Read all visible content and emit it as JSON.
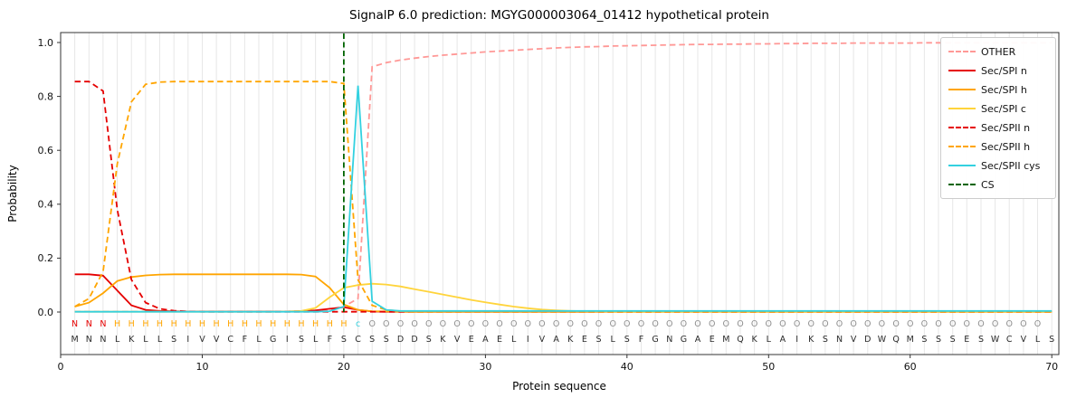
{
  "figure": {
    "title": "SignalP 6.0 prediction: MGYG000003064_01412 hypothetical protein",
    "xlabel": "Protein sequence",
    "ylabel": "Probability"
  },
  "chart_data": {
    "type": "line",
    "title": "SignalP 6.0 prediction: MGYG000003064_01412 hypothetical protein",
    "xlabel": "Protein sequence",
    "ylabel": "Probability",
    "xmax": 70.5,
    "xticks": [
      0,
      10,
      20,
      30,
      40,
      50,
      60,
      70
    ],
    "yticks": [
      0.0,
      0.2,
      0.4,
      0.6,
      0.8,
      1.0
    ],
    "grid": "light vertical gridline at every residue position",
    "legend_position": "upper right",
    "colors": {
      "grid": "#e7e7e7",
      "spine": "#333333",
      "tick_text": "#111111"
    },
    "sequence": "MNNLKLLSIVVCFLGISLFSCSSDDSKVEAELIVAKESLSFGNGAEMQKLAIKSNVDWQMSSSESWCVLS",
    "sequence_color": "#2b2b2b",
    "region_labels": "NNNHHHHHHHHHHHHHHHHHcOOOOOOOOOOOOOOOOOOOOOOOOOOOOOOOOOOOOOOOOOOOOOOOO",
    "region_colors": {
      "N": "#e50000",
      "H": "#ffa500",
      "c": "#33d1e0",
      "O": "#8f8f8f"
    },
    "cs": {
      "label": "CS",
      "position": 20,
      "color": "#006400"
    },
    "series": [
      {
        "name": "OTHER",
        "color": "#ff9896",
        "dash": true,
        "values": [
          0.002,
          0.002,
          0.002,
          0.002,
          0.002,
          0.002,
          0.002,
          0.002,
          0.002,
          0.002,
          0.002,
          0.002,
          0.002,
          0.002,
          0.002,
          0.002,
          0.002,
          0.003,
          0.005,
          0.02,
          0.05,
          0.91,
          0.925,
          0.935,
          0.942,
          0.948,
          0.953,
          0.957,
          0.961,
          0.965,
          0.968,
          0.971,
          0.974,
          0.977,
          0.98,
          0.982,
          0.984,
          0.985,
          0.987,
          0.988,
          0.989,
          0.99,
          0.991,
          0.992,
          0.993,
          0.993,
          0.994,
          0.994,
          0.995,
          0.995,
          0.996,
          0.996,
          0.997,
          0.997,
          0.997,
          0.998,
          0.998,
          0.998,
          0.998,
          0.998,
          0.999,
          0.999,
          0.999,
          0.999,
          0.999,
          0.999,
          0.999,
          0.999,
          0.999,
          0.999
        ]
      },
      {
        "name": "Sec/SPI n",
        "color": "#e50000",
        "dash": false,
        "values": [
          0.14,
          0.14,
          0.135,
          0.08,
          0.025,
          0.008,
          0.004,
          0.003,
          0.002,
          0.002,
          0.002,
          0.002,
          0.002,
          0.002,
          0.002,
          0.002,
          0.003,
          0.006,
          0.012,
          0.018,
          0.008,
          0.002,
          0.001,
          0.001,
          0.001,
          0.001,
          0.001,
          0.001,
          0.001,
          0.001,
          0.001,
          0.001,
          0.001,
          0.001,
          0.001,
          0.001,
          0.001,
          0.001,
          0.001,
          0.001,
          0.001,
          0.001,
          0.001,
          0.001,
          0.001,
          0.001,
          0.001,
          0.001,
          0.001,
          0.001,
          0.001,
          0.001,
          0.001,
          0.001,
          0.001,
          0.001,
          0.001,
          0.001,
          0.001,
          0.001,
          0.001,
          0.001,
          0.001,
          0.001,
          0.001,
          0.001,
          0.001,
          0.001,
          0.001,
          0.001
        ]
      },
      {
        "name": "Sec/SPI h",
        "color": "#ffa500",
        "dash": false,
        "values": [
          0.02,
          0.035,
          0.07,
          0.115,
          0.13,
          0.136,
          0.139,
          0.14,
          0.14,
          0.14,
          0.14,
          0.14,
          0.14,
          0.14,
          0.14,
          0.14,
          0.139,
          0.132,
          0.09,
          0.028,
          0.008,
          0.003,
          0.002,
          0.001,
          0.001,
          0.001,
          0.001,
          0.001,
          0.001,
          0.001,
          0.001,
          0.001,
          0.001,
          0.001,
          0.001,
          0.001,
          0.001,
          0.001,
          0.001,
          0.001,
          0.001,
          0.001,
          0.001,
          0.001,
          0.001,
          0.001,
          0.001,
          0.001,
          0.001,
          0.001,
          0.001,
          0.001,
          0.001,
          0.001,
          0.001,
          0.001,
          0.001,
          0.001,
          0.001,
          0.001,
          0.001,
          0.001,
          0.001,
          0.001,
          0.001,
          0.001,
          0.001,
          0.001,
          0.001,
          0.001
        ]
      },
      {
        "name": "Sec/SPI c",
        "color": "#ffd43b",
        "dash": false,
        "values": [
          0.001,
          0.001,
          0.001,
          0.001,
          0.001,
          0.001,
          0.001,
          0.001,
          0.001,
          0.001,
          0.001,
          0.001,
          0.001,
          0.001,
          0.001,
          0.002,
          0.004,
          0.015,
          0.055,
          0.09,
          0.1,
          0.105,
          0.102,
          0.095,
          0.085,
          0.075,
          0.065,
          0.055,
          0.045,
          0.036,
          0.028,
          0.02,
          0.014,
          0.009,
          0.006,
          0.004,
          0.003,
          0.002,
          0.001,
          0.001,
          0.001,
          0.001,
          0.001,
          0.001,
          0.001,
          0.001,
          0.001,
          0.001,
          0.001,
          0.001,
          0.001,
          0.001,
          0.001,
          0.001,
          0.001,
          0.001,
          0.001,
          0.001,
          0.001,
          0.001,
          0.001,
          0.001,
          0.001,
          0.001,
          0.001,
          0.001,
          0.001,
          0.001,
          0.001,
          0.001
        ]
      },
      {
        "name": "Sec/SPII n",
        "color": "#e50000",
        "dash": true,
        "values": [
          0.855,
          0.855,
          0.82,
          0.38,
          0.12,
          0.035,
          0.012,
          0.005,
          0.002,
          0.001,
          0.001,
          0.001,
          0.001,
          0.001,
          0.001,
          0.001,
          0.001,
          0.001,
          0.001,
          0.001,
          0.001,
          0.001,
          0.001,
          0.001,
          0.001,
          0.001,
          0.001,
          0.001,
          0.001,
          0.001,
          0.001,
          0.001,
          0.001,
          0.001,
          0.001,
          0.001,
          0.001,
          0.001,
          0.001,
          0.001,
          0.001,
          0.001,
          0.001,
          0.001,
          0.001,
          0.001,
          0.001,
          0.001,
          0.001,
          0.001,
          0.001,
          0.001,
          0.001,
          0.001,
          0.001,
          0.001,
          0.001,
          0.001,
          0.001,
          0.001,
          0.001,
          0.001,
          0.001,
          0.001,
          0.001,
          0.001,
          0.001,
          0.001,
          0.001,
          0.001
        ]
      },
      {
        "name": "Sec/SPII h",
        "color": "#ffa500",
        "dash": true,
        "values": [
          0.02,
          0.05,
          0.15,
          0.55,
          0.78,
          0.845,
          0.853,
          0.855,
          0.855,
          0.855,
          0.855,
          0.855,
          0.855,
          0.855,
          0.855,
          0.855,
          0.855,
          0.855,
          0.855,
          0.848,
          0.12,
          0.025,
          0.008,
          0.003,
          0.001,
          0.001,
          0.001,
          0.001,
          0.001,
          0.001,
          0.001,
          0.001,
          0.001,
          0.001,
          0.001,
          0.001,
          0.001,
          0.001,
          0.001,
          0.001,
          0.001,
          0.001,
          0.001,
          0.001,
          0.001,
          0.001,
          0.001,
          0.001,
          0.001,
          0.001,
          0.001,
          0.001,
          0.001,
          0.001,
          0.001,
          0.001,
          0.001,
          0.001,
          0.001,
          0.001,
          0.001,
          0.001,
          0.001,
          0.001,
          0.001,
          0.001,
          0.001,
          0.001,
          0.001,
          0.001
        ]
      },
      {
        "name": "Sec/SPII cys",
        "color": "#33d1e0",
        "dash": false,
        "values": [
          0.001,
          0.001,
          0.001,
          0.001,
          0.001,
          0.001,
          0.001,
          0.001,
          0.001,
          0.001,
          0.001,
          0.001,
          0.001,
          0.001,
          0.001,
          0.001,
          0.001,
          0.001,
          0.003,
          0.02,
          0.84,
          0.04,
          0.008,
          0.004,
          0.004,
          0.004,
          0.004,
          0.004,
          0.004,
          0.004,
          0.004,
          0.004,
          0.004,
          0.004,
          0.004,
          0.004,
          0.004,
          0.004,
          0.004,
          0.004,
          0.004,
          0.004,
          0.004,
          0.004,
          0.004,
          0.004,
          0.004,
          0.004,
          0.004,
          0.004,
          0.004,
          0.004,
          0.004,
          0.004,
          0.004,
          0.004,
          0.004,
          0.004,
          0.004,
          0.004,
          0.004,
          0.004,
          0.004,
          0.004,
          0.004,
          0.004,
          0.004,
          0.004,
          0.004,
          0.004
        ]
      }
    ]
  }
}
